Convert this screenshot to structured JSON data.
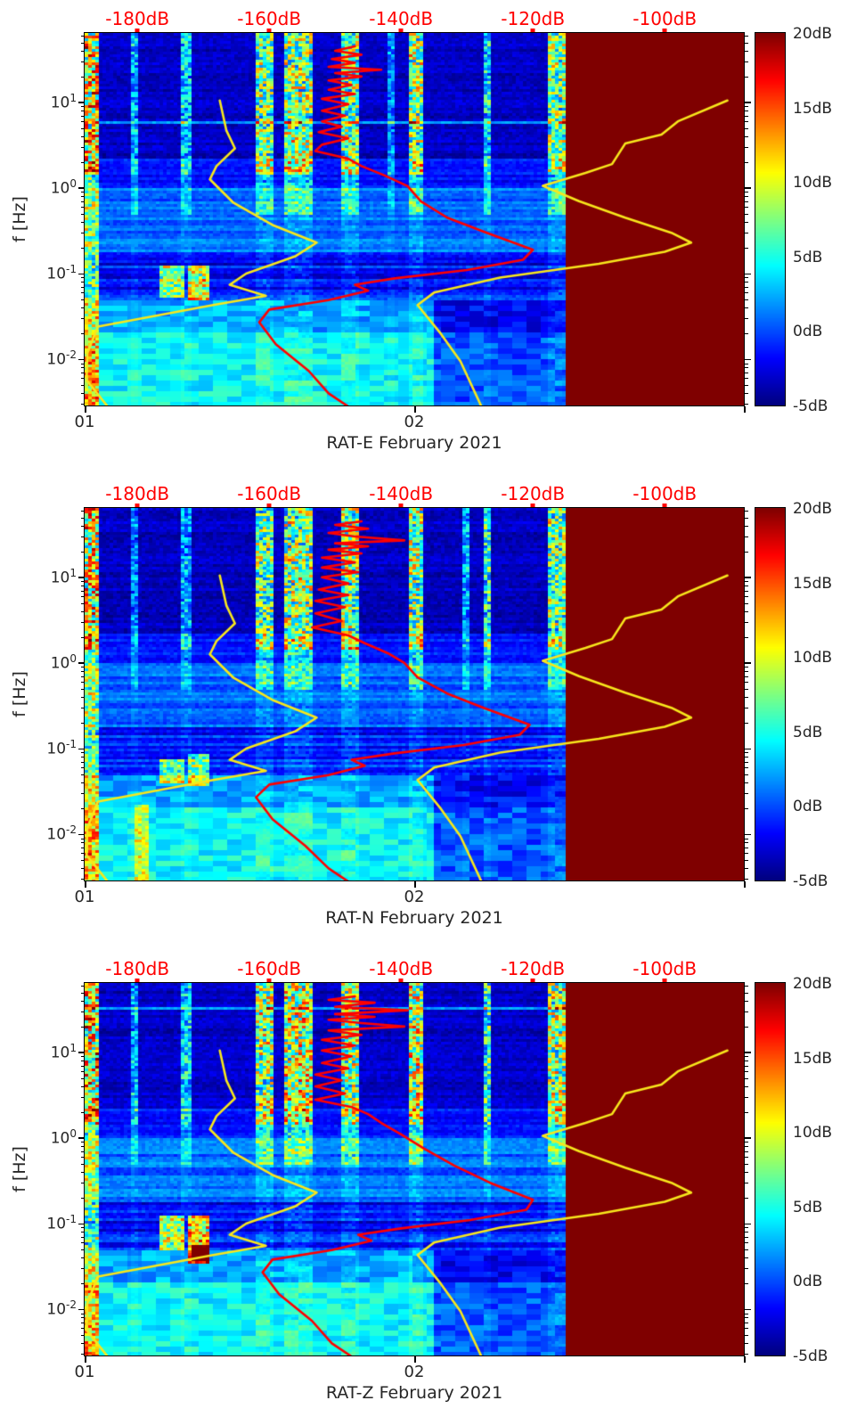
{
  "figure": {
    "background": "#ffffff"
  },
  "chart_data": {
    "type": "heatmap",
    "subtype": "seismic-spectrogram-with-noise-model-overlays",
    "shared": {
      "ylabel": "f [Hz]",
      "freq_log10_range": [
        -2.54,
        1.81
      ],
      "y_ticks": [
        {
          "base": "10",
          "exp": "1",
          "logf": 1
        },
        {
          "base": "10",
          "exp": "0",
          "logf": 0
        },
        {
          "base": "10",
          "exp": "-1",
          "logf": -1
        },
        {
          "base": "10",
          "exp": "-2",
          "logf": -2
        }
      ],
      "x_ticks": [
        {
          "label": "01",
          "frac": 0
        },
        {
          "label": "02",
          "frac": 0.5
        },
        {
          "label": "",
          "frac": 1
        }
      ],
      "top_axis": {
        "range_db": [
          -188,
          -88
        ],
        "ticks": [
          {
            "label": "-180dB",
            "db": -180
          },
          {
            "label": "-160dB",
            "db": -160
          },
          {
            "label": "-140dB",
            "db": -140
          },
          {
            "label": "-120dB",
            "db": -120
          },
          {
            "label": "-100dB",
            "db": -100
          }
        ]
      },
      "colorbar": {
        "min_db": -5,
        "max_db": 20,
        "ticks": [
          {
            "label": "20dB",
            "db": 20
          },
          {
            "label": "15dB",
            "db": 15
          },
          {
            "label": "10dB",
            "db": 10
          },
          {
            "label": "5dB",
            "db": 5
          },
          {
            "label": "0dB",
            "db": 0
          },
          {
            "label": "-5dB",
            "db": -5
          }
        ]
      },
      "saturation_start_frac": 0.73,
      "colors": {
        "top_axis_text": "#ff0000",
        "axis_text": "#262626",
        "psd_curve": "#ff0000",
        "noise_model_curve": "#f8e71c",
        "saturated_region": "#800000"
      },
      "noise_models": {
        "nlnm_freq_db": [
          [
            10.5,
            -167.5
          ],
          [
            4.7,
            -166.5
          ],
          [
            2.9,
            -165.2
          ],
          [
            1.8,
            -168
          ],
          [
            1.26,
            -169
          ],
          [
            0.68,
            -165.5
          ],
          [
            0.37,
            -159.5
          ],
          [
            0.23,
            -152.8
          ],
          [
            0.16,
            -156
          ],
          [
            0.1,
            -163.5
          ],
          [
            0.074,
            -166
          ],
          [
            0.055,
            -160.5
          ],
          [
            0.043,
            -168.5
          ],
          [
            0.024,
            -186
          ],
          [
            0.0117,
            -187.6
          ],
          [
            0.0057,
            -187.7
          ],
          [
            0.0028,
            -184.5
          ]
        ],
        "nhnm_freq_db": [
          [
            0.0028,
            -127.8
          ],
          [
            0.0095,
            -131
          ],
          [
            0.02,
            -134
          ],
          [
            0.043,
            -137.5
          ],
          [
            0.06,
            -135
          ],
          [
            0.09,
            -125
          ],
          [
            0.13,
            -110
          ],
          [
            0.18,
            -100
          ],
          [
            0.23,
            -96
          ],
          [
            0.3,
            -99
          ],
          [
            0.45,
            -106
          ],
          [
            0.7,
            -113
          ],
          [
            1.06,
            -118.5
          ],
          [
            1.5,
            -112
          ],
          [
            1.9,
            -108
          ],
          [
            3.3,
            -106
          ],
          [
            4.2,
            -100.5
          ],
          [
            6,
            -98
          ],
          [
            10.5,
            -90.5
          ]
        ]
      }
    },
    "panels": [
      {
        "title": "RAT-E February 2021",
        "seed": 11,
        "stripes": [
          {
            "t": 0.008,
            "w": 0.013,
            "a": 15,
            "floor": 0.55
          },
          {
            "t": 0.075,
            "w": 0.007,
            "a": 6
          },
          {
            "t": 0.155,
            "w": 0.009,
            "a": 7
          },
          {
            "t": 0.272,
            "w": 0.013,
            "a": 11
          },
          {
            "t": 0.325,
            "w": 0.02,
            "a": 12
          },
          {
            "t": 0.402,
            "w": 0.014,
            "a": 11
          },
          {
            "t": 0.465,
            "w": 0.006,
            "a": 5
          },
          {
            "t": 0.502,
            "w": 0.012,
            "a": 12
          },
          {
            "t": 0.61,
            "w": 0.007,
            "a": 8
          },
          {
            "t": 0.716,
            "w": 0.012,
            "a": 11
          }
        ],
        "blobs": [
          {
            "t": 0.132,
            "w": 0.018,
            "f": -1.1,
            "h": 0.18,
            "a": 9
          },
          {
            "t": 0.173,
            "w": 0.014,
            "f": -1.1,
            "h": 0.2,
            "a": 11
          }
        ],
        "dark_blocks": [
          {
            "t0": 0.53,
            "t1": 0.728,
            "top": -1.3
          }
        ],
        "psd_curve": [
          [
            45,
            -147
          ],
          [
            40,
            -150
          ],
          [
            36,
            -146
          ],
          [
            32,
            -150.5
          ],
          [
            29,
            -147
          ],
          [
            26,
            -151
          ],
          [
            24,
            -143
          ],
          [
            22,
            -150
          ],
          [
            20,
            -146
          ],
          [
            18,
            -151
          ],
          [
            16,
            -147.5
          ],
          [
            14,
            -151
          ],
          [
            12.5,
            -147
          ],
          [
            11,
            -152
          ],
          [
            9.5,
            -148
          ],
          [
            8,
            -152
          ],
          [
            7,
            -148.5
          ],
          [
            6,
            -152
          ],
          [
            5.2,
            -149
          ],
          [
            4.5,
            -152.5
          ],
          [
            3.8,
            -148
          ],
          [
            3.2,
            -152
          ],
          [
            2.7,
            -153
          ],
          [
            2.2,
            -148
          ],
          [
            1.8,
            -146
          ],
          [
            1.4,
            -142.5
          ],
          [
            1.05,
            -139
          ],
          [
            0.7,
            -137
          ],
          [
            0.45,
            -133
          ],
          [
            0.3,
            -127
          ],
          [
            0.19,
            -120
          ],
          [
            0.145,
            -121.5
          ],
          [
            0.11,
            -130
          ],
          [
            0.088,
            -141
          ],
          [
            0.074,
            -147
          ],
          [
            0.063,
            -145
          ],
          [
            0.049,
            -151
          ],
          [
            0.038,
            -160
          ],
          [
            0.027,
            -161.5
          ],
          [
            0.015,
            -159
          ],
          [
            0.0073,
            -154
          ],
          [
            0.004,
            -151
          ],
          [
            0.0028,
            -148
          ]
        ]
      },
      {
        "title": "RAT-N February 2021",
        "seed": 22,
        "stripes": [
          {
            "t": 0.008,
            "w": 0.013,
            "a": 15,
            "floor": 0.55
          },
          {
            "t": 0.075,
            "w": 0.007,
            "a": 5
          },
          {
            "t": 0.155,
            "w": 0.009,
            "a": 6
          },
          {
            "t": 0.272,
            "w": 0.013,
            "a": 11
          },
          {
            "t": 0.325,
            "w": 0.02,
            "a": 12
          },
          {
            "t": 0.402,
            "w": 0.014,
            "a": 12
          },
          {
            "t": 0.502,
            "w": 0.012,
            "a": 12
          },
          {
            "t": 0.578,
            "w": 0.005,
            "a": 6
          },
          {
            "t": 0.61,
            "w": 0.007,
            "a": 9
          },
          {
            "t": 0.716,
            "w": 0.012,
            "a": 11
          }
        ],
        "blobs": [
          {
            "t": 0.132,
            "w": 0.018,
            "f": -1.28,
            "h": 0.14,
            "a": 7
          },
          {
            "t": 0.173,
            "w": 0.014,
            "f": -1.25,
            "h": 0.2,
            "a": 8
          },
          {
            "t": 0.088,
            "w": 0.01,
            "f": -2.1,
            "h": 0.45,
            "a": 5
          }
        ],
        "dark_blocks": [
          {
            "t0": 0.53,
            "t1": 0.728,
            "top": -1.3
          }
        ],
        "psd_curve": [
          [
            45,
            -146
          ],
          [
            41,
            -150
          ],
          [
            37,
            -145
          ],
          [
            33,
            -151
          ],
          [
            30,
            -147
          ],
          [
            27,
            -139.5
          ],
          [
            25,
            -150
          ],
          [
            23,
            -145
          ],
          [
            21,
            -151
          ],
          [
            19,
            -146
          ],
          [
            17,
            -152
          ],
          [
            15,
            -147
          ],
          [
            13,
            -152
          ],
          [
            11.5,
            -146.5
          ],
          [
            10,
            -152
          ],
          [
            8.5,
            -148
          ],
          [
            7.2,
            -152.5
          ],
          [
            6.2,
            -148
          ],
          [
            5.3,
            -153
          ],
          [
            4.5,
            -148.5
          ],
          [
            3.8,
            -153
          ],
          [
            3.1,
            -149
          ],
          [
            2.6,
            -153.5
          ],
          [
            2.1,
            -148
          ],
          [
            1.7,
            -145.5
          ],
          [
            1.3,
            -142
          ],
          [
            1.0,
            -139.5
          ],
          [
            0.68,
            -137.5
          ],
          [
            0.44,
            -133
          ],
          [
            0.3,
            -127.5
          ],
          [
            0.19,
            -120.5
          ],
          [
            0.145,
            -122
          ],
          [
            0.11,
            -130.5
          ],
          [
            0.088,
            -141
          ],
          [
            0.074,
            -147.5
          ],
          [
            0.063,
            -145.5
          ],
          [
            0.049,
            -151
          ],
          [
            0.038,
            -160
          ],
          [
            0.027,
            -162
          ],
          [
            0.015,
            -159.5
          ],
          [
            0.0073,
            -154.5
          ],
          [
            0.004,
            -151
          ],
          [
            0.0028,
            -148
          ]
        ]
      },
      {
        "title": "RAT-Z February 2021",
        "seed": 33,
        "stripes": [
          {
            "t": 0.008,
            "w": 0.013,
            "a": 15,
            "floor": 0.55
          },
          {
            "t": 0.075,
            "w": 0.007,
            "a": 6
          },
          {
            "t": 0.155,
            "w": 0.009,
            "a": 7
          },
          {
            "t": 0.272,
            "w": 0.013,
            "a": 12
          },
          {
            "t": 0.325,
            "w": 0.02,
            "a": 13
          },
          {
            "t": 0.402,
            "w": 0.014,
            "a": 12
          },
          {
            "t": 0.502,
            "w": 0.012,
            "a": 13
          },
          {
            "t": 0.61,
            "w": 0.007,
            "a": 9
          },
          {
            "t": 0.716,
            "w": 0.012,
            "a": 12
          }
        ],
        "blobs": [
          {
            "t": 0.132,
            "w": 0.018,
            "f": -1.1,
            "h": 0.2,
            "a": 10
          },
          {
            "t": 0.173,
            "w": 0.014,
            "f": -1.18,
            "h": 0.28,
            "a": 12
          },
          {
            "t": 0.175,
            "w": 0.012,
            "f": -1.35,
            "h": 0.1,
            "a": 16
          }
        ],
        "dark_blocks": [
          {
            "t0": 0.53,
            "t1": 0.728,
            "top": -1.3
          }
        ],
        "psd_curve": [
          [
            45,
            -147
          ],
          [
            41,
            -151
          ],
          [
            38,
            -144
          ],
          [
            34,
            -150
          ],
          [
            31,
            -139
          ],
          [
            28,
            -150
          ],
          [
            26,
            -144
          ],
          [
            24,
            -151
          ],
          [
            22,
            -146
          ],
          [
            20,
            -139.5
          ],
          [
            18,
            -151
          ],
          [
            16,
            -146
          ],
          [
            14,
            -152
          ],
          [
            12,
            -147
          ],
          [
            10.5,
            -152
          ],
          [
            9,
            -147.5
          ],
          [
            7.5,
            -152
          ],
          [
            6.5,
            -148
          ],
          [
            5.5,
            -153
          ],
          [
            4.7,
            -149
          ],
          [
            4,
            -153
          ],
          [
            3.3,
            -148.5
          ],
          [
            2.8,
            -153
          ],
          [
            2.3,
            -147.5
          ],
          [
            1.9,
            -145
          ],
          [
            1.5,
            -143
          ],
          [
            1.1,
            -140
          ],
          [
            0.75,
            -136.5
          ],
          [
            0.48,
            -132
          ],
          [
            0.3,
            -126.5
          ],
          [
            0.19,
            -120
          ],
          [
            0.145,
            -121
          ],
          [
            0.11,
            -129.5
          ],
          [
            0.088,
            -140
          ],
          [
            0.074,
            -146.5
          ],
          [
            0.063,
            -144.5
          ],
          [
            0.049,
            -150.5
          ],
          [
            0.038,
            -159.5
          ],
          [
            0.027,
            -161
          ],
          [
            0.015,
            -158.5
          ],
          [
            0.0073,
            -153.5
          ],
          [
            0.004,
            -150.5
          ],
          [
            0.0028,
            -147.5
          ]
        ]
      }
    ]
  }
}
